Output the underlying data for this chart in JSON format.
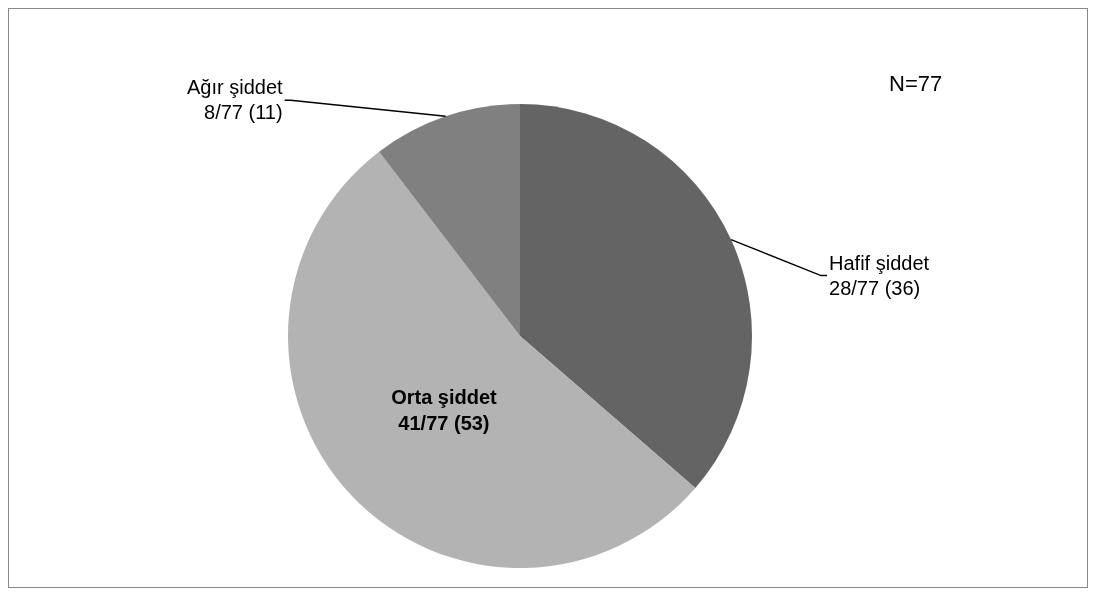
{
  "chart_data": {
    "type": "pie",
    "categories": [
      "Hafif şiddet",
      "Orta şiddet",
      "Ağır şiddet"
    ],
    "values": [
      28,
      41,
      8
    ],
    "value_labels": [
      "28/77 (36)",
      "41/77 (53)",
      "8/77 (11)"
    ],
    "colors": [
      "#646464",
      "#b3b3b3",
      "#808080"
    ],
    "annotations": [
      "N=77"
    ],
    "legend": false
  }
}
